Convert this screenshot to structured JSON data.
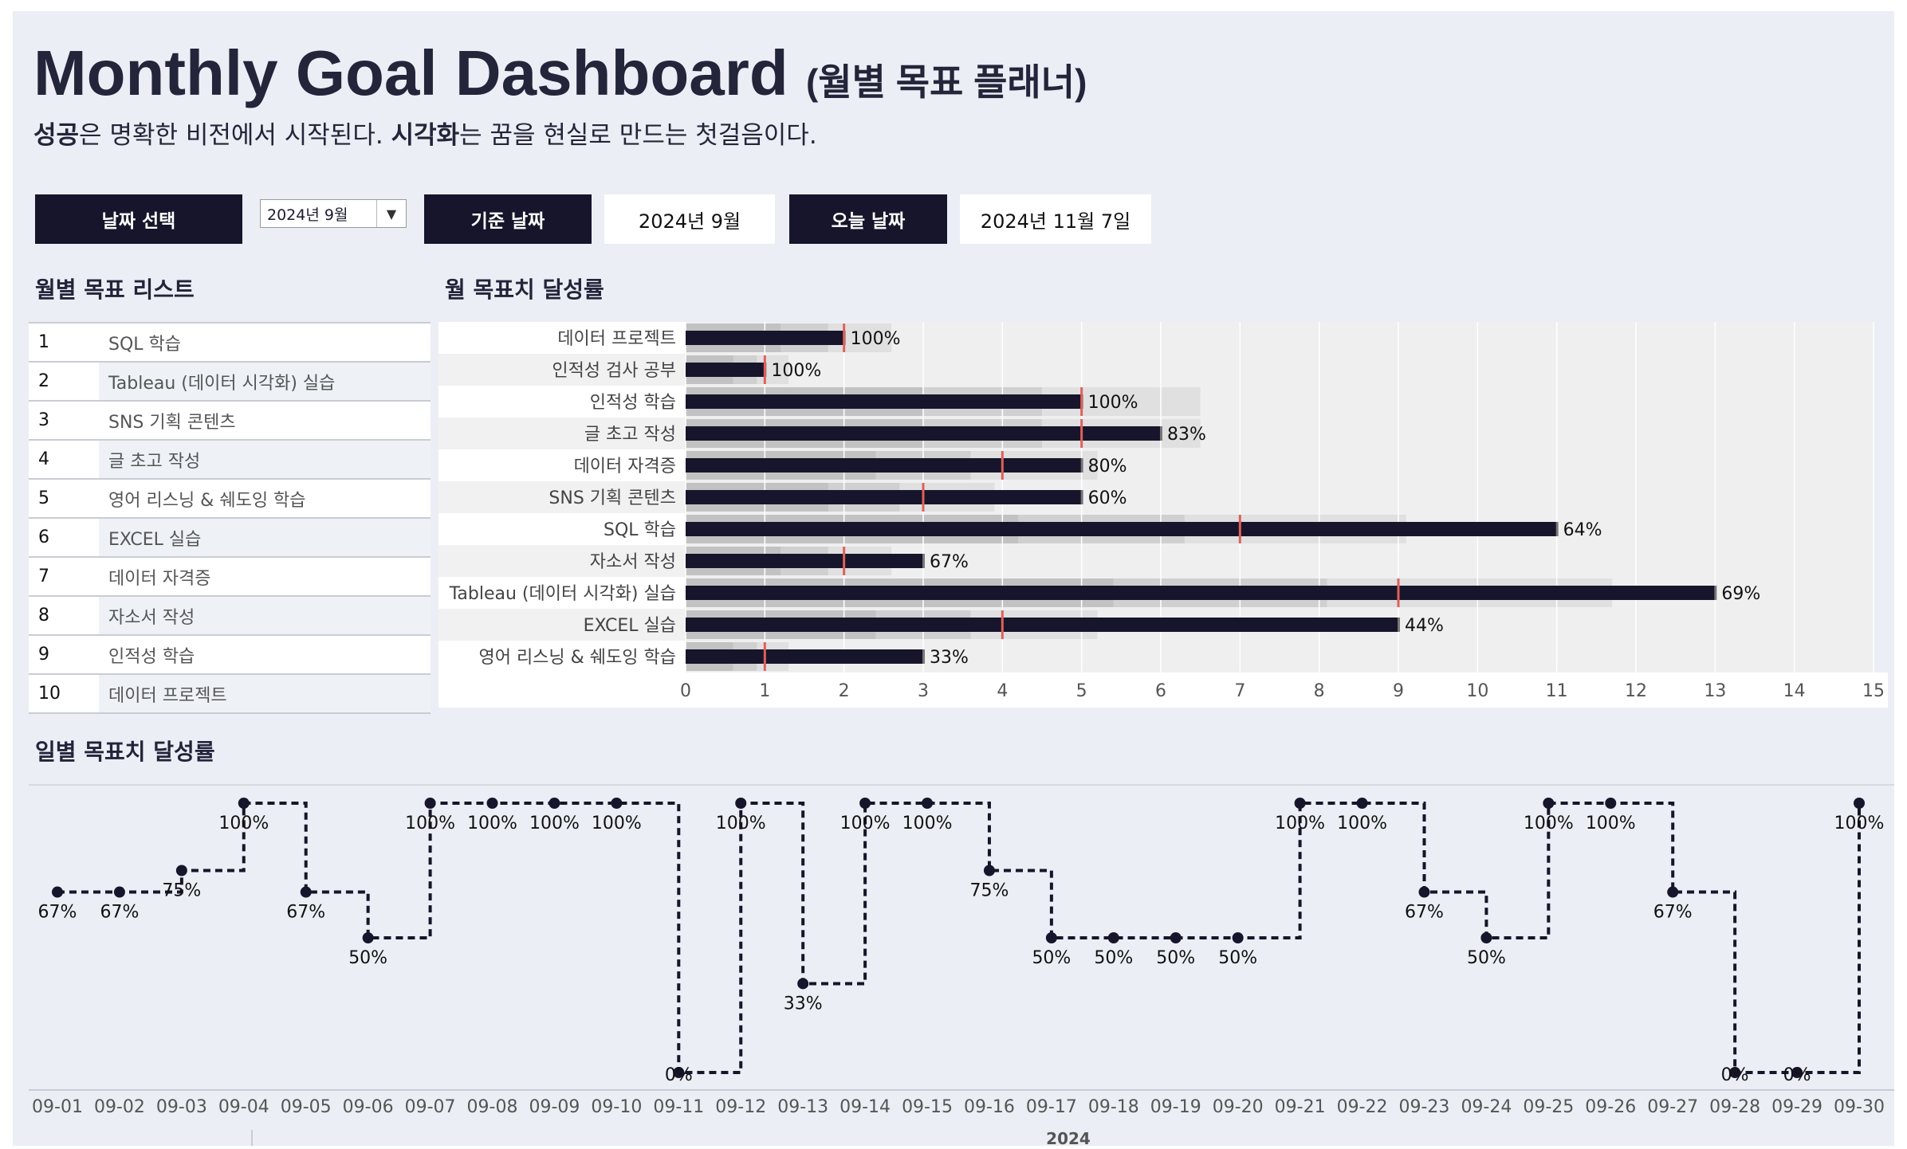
{
  "header": {
    "title": "Monthly Goal Dashboard",
    "title_sub": "(월별 목표 플래너)",
    "tagline_bold1": "성공",
    "tagline_text1": "은 명확한 비전에서 시작된다. ",
    "tagline_bold2": "시각화",
    "tagline_text2": "는 꿈을 현실로 만드는 첫걸음이다."
  },
  "controls": {
    "date_select_label": "날짜 선택",
    "date_select_value": "2024년 9월",
    "base_date_label": "기준 날짜",
    "base_date_value": "2024년 9월",
    "today_label": "오늘 날짜",
    "today_value": "2024년 11월 7일"
  },
  "goal_list": {
    "title": "월별 목표 리스트",
    "items": [
      {
        "num": "1",
        "label": "SQL 학습"
      },
      {
        "num": "2",
        "label": "Tableau (데이터 시각화) 실습"
      },
      {
        "num": "3",
        "label": "SNS 기획 콘텐츠"
      },
      {
        "num": "4",
        "label": "글 초고 작성"
      },
      {
        "num": "5",
        "label": "영어 리스닝 & 쉐도잉 학습"
      },
      {
        "num": "6",
        "label": "EXCEL 실습"
      },
      {
        "num": "7",
        "label": "데이터 자격증"
      },
      {
        "num": "8",
        "label": "자소서 작성"
      },
      {
        "num": "9",
        "label": "인적성 학습"
      },
      {
        "num": "10",
        "label": "데이터 프로젝트"
      }
    ]
  },
  "colors": {
    "navy": "#17152b",
    "target_marker": "#e0605a",
    "background": "#ebeef4"
  },
  "chart_data": [
    {
      "type": "bar",
      "title": "월 목표치 달성률",
      "categories": [
        "데이터 프로젝트",
        "인적성 검사 공부",
        "인적성 학습",
        "글 초고 작성",
        "데이터 자격증",
        "SNS 기획 콘텐츠",
        "SQL 학습",
        "자소서 작성",
        "Tableau (데이터 시각화) 실습",
        "EXCEL 실습",
        "영어 리스닝 & 쉐도잉 학습"
      ],
      "values": [
        2,
        1,
        5,
        6,
        5,
        5,
        11,
        3,
        13,
        9,
        3
      ],
      "targets": [
        2,
        1,
        5,
        5,
        4,
        3,
        7,
        2,
        9,
        4,
        1
      ],
      "labels": [
        "100%",
        "100%",
        "100%",
        "83%",
        "80%",
        "60%",
        "64%",
        "67%",
        "69%",
        "44%",
        "33%"
      ],
      "xticks": [
        "0",
        "1",
        "2",
        "3",
        "4",
        "5",
        "6",
        "7",
        "8",
        "9",
        "10",
        "11",
        "12",
        "13",
        "14",
        "15"
      ],
      "xlim": [
        0,
        15
      ],
      "grid": true
    },
    {
      "type": "line",
      "title": "일별 목표치 달성률",
      "x": [
        "09-01",
        "09-02",
        "09-03",
        "09-04",
        "09-05",
        "09-06",
        "09-07",
        "09-08",
        "09-09",
        "09-10",
        "09-11",
        "09-12",
        "09-13",
        "09-14",
        "09-15",
        "09-16",
        "09-17",
        "09-18",
        "09-19",
        "09-20",
        "09-21",
        "09-22",
        "09-23",
        "09-24",
        "09-25",
        "09-26",
        "09-27",
        "09-28",
        "09-29",
        "09-30"
      ],
      "values": [
        67,
        67,
        75,
        100,
        67,
        50,
        100,
        100,
        100,
        100,
        0,
        100,
        33,
        100,
        100,
        75,
        50,
        50,
        50,
        50,
        100,
        100,
        67,
        50,
        100,
        100,
        67,
        0,
        0,
        100
      ],
      "labels": [
        "67%",
        "67%",
        "75%",
        "100%",
        "67%",
        "50%",
        "100%",
        "100%",
        "100%",
        "100%",
        "0%",
        "100%",
        "33%",
        "100%",
        "100%",
        "75%",
        "50%",
        "50%",
        "50%",
        "50%",
        "100%",
        "100%",
        "67%",
        "50%",
        "100%",
        "100%",
        "67%",
        "0%",
        "0%",
        "100%"
      ],
      "ylim": [
        0,
        100
      ],
      "year_label": "2024"
    }
  ]
}
